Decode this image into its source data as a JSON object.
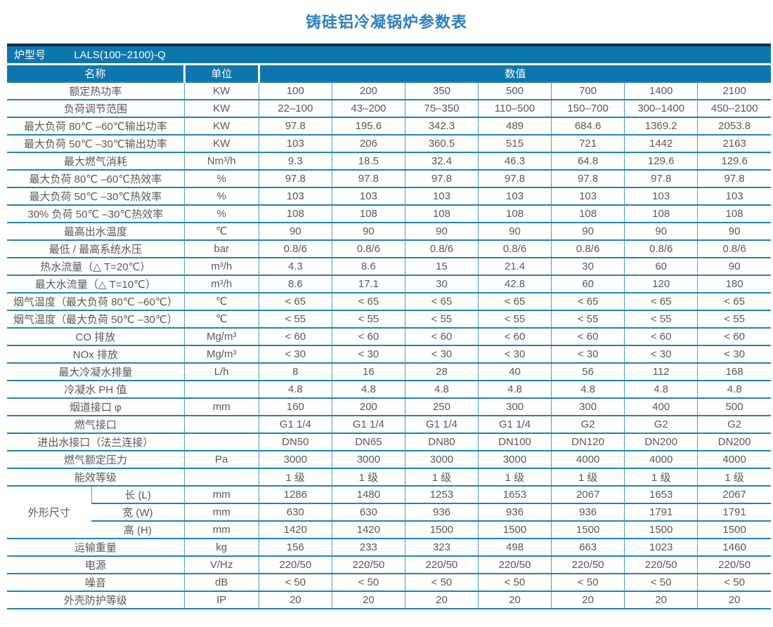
{
  "title": "铸硅铝冷凝锅炉参数表",
  "colors": {
    "header_bg": "#0e76ae",
    "accent_bar": "#152e47",
    "border_strong": "#2181bc",
    "border_light": "#4c9aca",
    "title_text": "#2e7fc2",
    "body_text": "#57585a"
  },
  "table": {
    "model_label": "炉型号",
    "model_value": "LALS(100~2100)-Q",
    "headers": {
      "name": "名称",
      "unit": "单位",
      "value": "数值"
    },
    "rows": [
      {
        "name": "额定热功率",
        "unit": "KW",
        "values": [
          "100",
          "200",
          "350",
          "500",
          "700",
          "1400",
          "2100"
        ]
      },
      {
        "name": "负荷调节范围",
        "unit": "KW",
        "values": [
          "22–100",
          "43–200",
          "75–350",
          "110–500",
          "150–700",
          "300–1400",
          "450–2100"
        ]
      },
      {
        "name": "最大负荷 80℃ –60℃输出功率",
        "unit": "KW",
        "values": [
          "97.8",
          "195.6",
          "342.3",
          "489",
          "684.6",
          "1369.2",
          "2053.8"
        ]
      },
      {
        "name": "最大负荷 50℃ –30℃输出功率",
        "unit": "KW",
        "values": [
          "103",
          "206",
          "360.5",
          "515",
          "721",
          "1442",
          "2163"
        ]
      },
      {
        "name": "最大燃气消耗",
        "unit": "Nm³/h",
        "values": [
          "9.3",
          "18.5",
          "32.4",
          "46.3",
          "64.8",
          "129.6",
          "129.6"
        ]
      },
      {
        "name": "最大负荷 80℃ –60℃热效率",
        "unit": "%",
        "values": [
          "97.8",
          "97.8",
          "97.8",
          "97.8",
          "97.8",
          "97.8",
          "97.8"
        ]
      },
      {
        "name": "最大负荷 50℃ –30℃热效率",
        "unit": "%",
        "values": [
          "103",
          "103",
          "103",
          "103",
          "103",
          "103",
          "103"
        ]
      },
      {
        "name": "30% 负荷 50℃ –30℃热效率",
        "unit": "%",
        "values": [
          "108",
          "108",
          "108",
          "108",
          "108",
          "108",
          "108"
        ]
      },
      {
        "name": "最高出水温度",
        "unit": "℃",
        "values": [
          "90",
          "90",
          "90",
          "90",
          "90",
          "90",
          "90"
        ]
      },
      {
        "name": "最低 / 最高系统水压",
        "unit": "bar",
        "values": [
          "0.8/6",
          "0.8/6",
          "0.8/6",
          "0.8/6",
          "0.8/6",
          "0.8/6",
          "0.8/6"
        ]
      },
      {
        "name": "热水流量（△ T=20℃）",
        "unit": "m³/h",
        "values": [
          "4.3",
          "8.6",
          "15",
          "21.4",
          "30",
          "60",
          "90"
        ]
      },
      {
        "name": "最大水流量（△ T=10℃）",
        "unit": "m³/h",
        "values": [
          "8.6",
          "17.1",
          "30",
          "42.8",
          "60",
          "120",
          "180"
        ]
      },
      {
        "name": "烟气温度（最大负荷 80℃ –60℃）",
        "unit": "℃",
        "values": [
          "< 65",
          "< 65",
          "< 65",
          "< 65",
          "< 65",
          "< 65",
          "< 65"
        ]
      },
      {
        "name": "烟气温度（最大负荷 50℃ –30℃）",
        "unit": "℃",
        "values": [
          "< 55",
          "< 55",
          "< 55",
          "< 55",
          "< 55",
          "< 55",
          "< 55"
        ]
      },
      {
        "name": "CO 排放",
        "unit": "Mg/m³",
        "values": [
          "< 60",
          "< 60",
          "< 60",
          "< 60",
          "< 60",
          "< 60",
          "< 60"
        ]
      },
      {
        "name": "NOx 排放",
        "unit": "Mg/m³",
        "values": [
          "< 30",
          "< 30",
          "< 30",
          "< 30",
          "< 30",
          "< 30",
          "< 30"
        ]
      },
      {
        "name": "最大冷凝水排量",
        "unit": "L/h",
        "values": [
          "8",
          "16",
          "28",
          "40",
          "56",
          "112",
          "168"
        ]
      },
      {
        "name": "冷凝水 PH 值",
        "unit": "",
        "values": [
          "4.8",
          "4.8",
          "4.8",
          "4.8",
          "4.8",
          "4.8",
          "4.8"
        ]
      },
      {
        "name": "烟道接口 φ",
        "unit": "mm",
        "values": [
          "160",
          "200",
          "250",
          "300",
          "300",
          "400",
          "500"
        ]
      },
      {
        "name": "燃气接口",
        "unit": "",
        "values": [
          "G1 1/4",
          "G1 1/4",
          "G1 1/4",
          "G1 1/4",
          "G2",
          "G2",
          "G2"
        ]
      },
      {
        "name": "进出水接口（法兰连接）",
        "unit": "",
        "values": [
          "DN50",
          "DN65",
          "DN80",
          "DN100",
          "DN120",
          "DN200",
          "DN200"
        ]
      },
      {
        "name": "燃气额定压力",
        "unit": "Pa",
        "values": [
          "3000",
          "3000",
          "3000",
          "3000",
          "4000",
          "4000",
          "4000"
        ]
      },
      {
        "name": "能效等级",
        "unit": "",
        "values": [
          "1 级",
          "1 级",
          "1 级",
          "1 级",
          "1 级",
          "1 级",
          "1 级"
        ]
      },
      {
        "group": "外形尺寸",
        "group_rowspan": 3,
        "name": "长 (L)",
        "unit": "mm",
        "values": [
          "1286",
          "1480",
          "1253",
          "1653",
          "2067",
          "1653",
          "2067"
        ]
      },
      {
        "in_group": true,
        "name": "宽 (W)",
        "unit": "mm",
        "values": [
          "630",
          "630",
          "936",
          "936",
          "936",
          "1791",
          "1791"
        ]
      },
      {
        "in_group": true,
        "name": "高 (H)",
        "unit": "mm",
        "values": [
          "1420",
          "1420",
          "1500",
          "1500",
          "1500",
          "1500",
          "1500"
        ]
      },
      {
        "name": "运输重量",
        "unit": "kg",
        "values": [
          "156",
          "233",
          "323",
          "498",
          "663",
          "1023",
          "1460"
        ]
      },
      {
        "name": "电源",
        "unit": "V/Hz",
        "values": [
          "220/50",
          "220/50",
          "220/50",
          "220/50",
          "220/50",
          "220/50",
          "220/50"
        ]
      },
      {
        "name": "噪音",
        "unit": "dB",
        "values": [
          "< 50",
          "< 50",
          "< 50",
          "< 50",
          "< 50",
          "< 50",
          "< 50"
        ]
      },
      {
        "name": "外壳防护等级",
        "unit": "IP",
        "values": [
          "20",
          "20",
          "20",
          "20",
          "20",
          "20",
          "20"
        ]
      }
    ]
  }
}
